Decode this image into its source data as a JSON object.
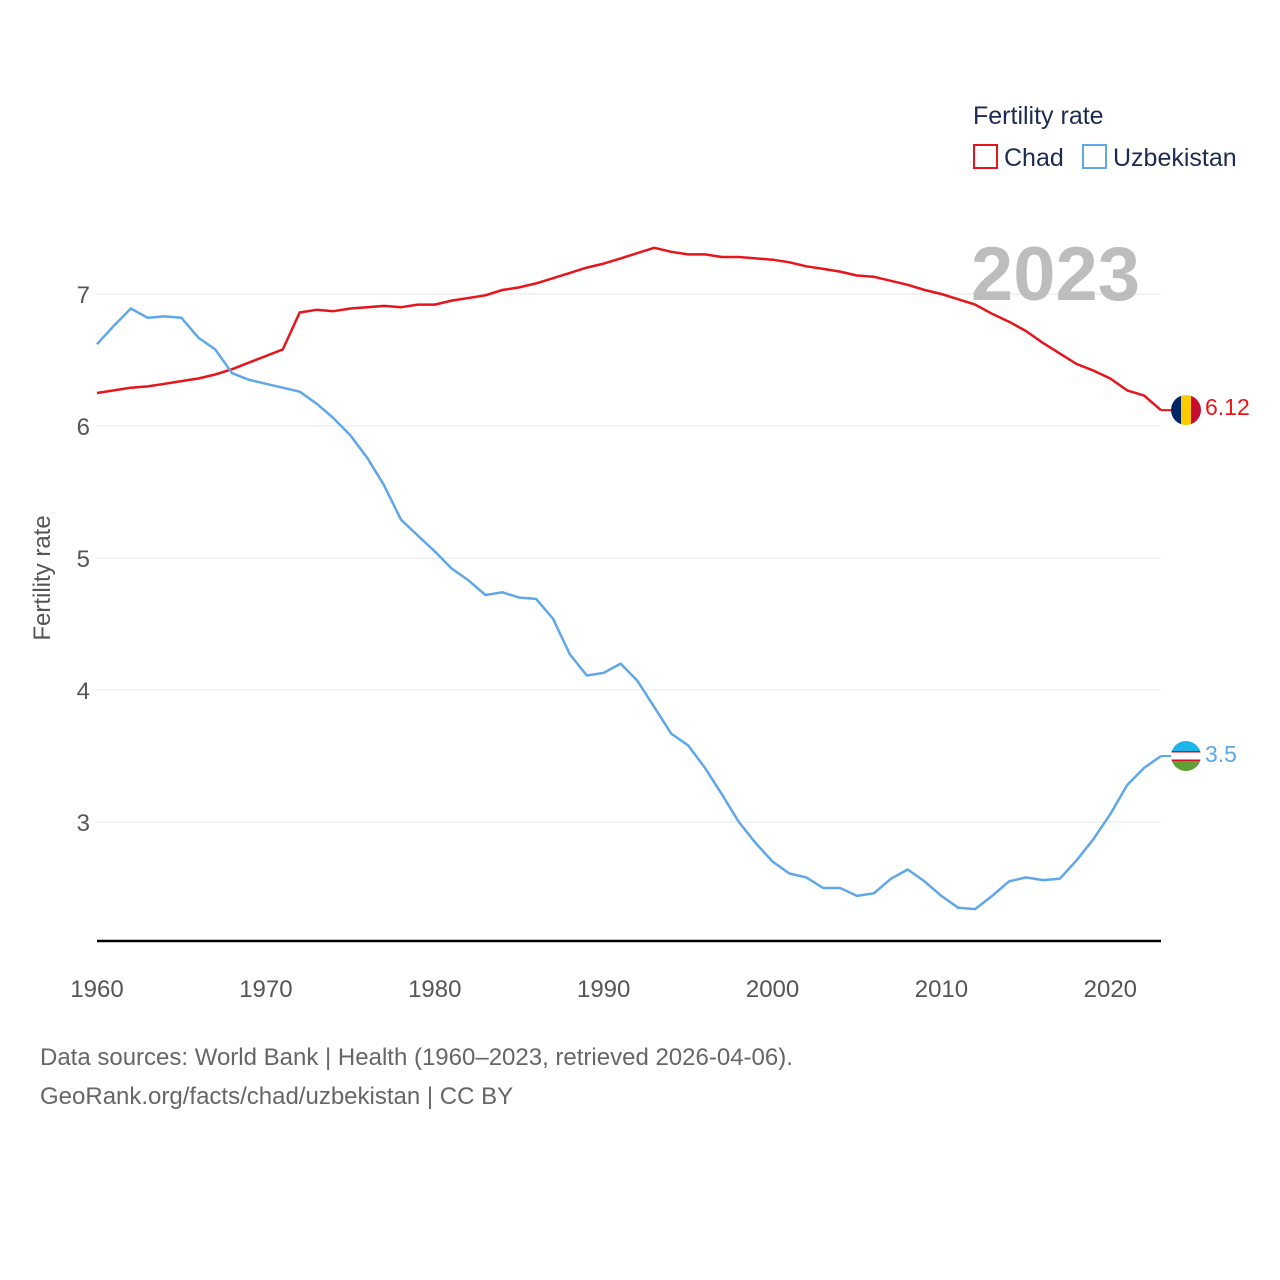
{
  "chart_data": {
    "type": "line",
    "legend": {
      "title": "Fertility rate",
      "position": "top-right"
    },
    "ylabel": "Fertility rate",
    "ylim": [
      2.1,
      7.75
    ],
    "xlim": [
      1960,
      2023
    ],
    "yticks": [
      3,
      4,
      5,
      6,
      7
    ],
    "xticks": [
      1960,
      1970,
      1980,
      1990,
      2000,
      2010,
      2020
    ],
    "year_label": "2023",
    "x": [
      1960,
      1961,
      1962,
      1963,
      1964,
      1965,
      1966,
      1967,
      1968,
      1969,
      1970,
      1971,
      1972,
      1973,
      1974,
      1975,
      1976,
      1977,
      1978,
      1979,
      1980,
      1981,
      1982,
      1983,
      1984,
      1985,
      1986,
      1987,
      1988,
      1989,
      1990,
      1991,
      1992,
      1993,
      1994,
      1995,
      1996,
      1997,
      1998,
      1999,
      2000,
      2001,
      2002,
      2003,
      2004,
      2005,
      2006,
      2007,
      2008,
      2009,
      2010,
      2011,
      2012,
      2013,
      2014,
      2015,
      2016,
      2017,
      2018,
      2019,
      2020,
      2021,
      2022,
      2023
    ],
    "series": [
      {
        "name": "Chad",
        "color": "#e8141c",
        "end_label": "6.12",
        "flag": "chad-flag",
        "values": [
          6.25,
          6.27,
          6.29,
          6.3,
          6.32,
          6.34,
          6.36,
          6.39,
          6.43,
          6.48,
          6.53,
          6.58,
          6.86,
          6.88,
          6.87,
          6.89,
          6.9,
          6.91,
          6.9,
          6.92,
          6.92,
          6.95,
          6.97,
          6.99,
          7.03,
          7.05,
          7.08,
          7.12,
          7.16,
          7.2,
          7.23,
          7.27,
          7.31,
          7.35,
          7.32,
          7.3,
          7.3,
          7.28,
          7.28,
          7.27,
          7.26,
          7.24,
          7.21,
          7.19,
          7.17,
          7.14,
          7.13,
          7.1,
          7.07,
          7.03,
          7.0,
          6.96,
          6.92,
          6.85,
          6.79,
          6.72,
          6.63,
          6.55,
          6.47,
          6.42,
          6.36,
          6.27,
          6.23,
          6.12
        ]
      },
      {
        "name": "Uzbekistan",
        "color": "#5fa7e8",
        "end_label": "3.5",
        "flag": "uzbekistan-flag",
        "values": [
          6.62,
          6.76,
          6.89,
          6.82,
          6.83,
          6.82,
          6.67,
          6.58,
          6.4,
          6.35,
          6.32,
          6.29,
          6.26,
          6.17,
          6.06,
          5.93,
          5.76,
          5.55,
          5.29,
          5.17,
          5.05,
          4.92,
          4.83,
          4.72,
          4.74,
          4.7,
          4.69,
          4.54,
          4.27,
          4.11,
          4.13,
          4.2,
          4.07,
          3.87,
          3.67,
          3.58,
          3.41,
          3.21,
          3.0,
          2.84,
          2.7,
          2.61,
          2.58,
          2.5,
          2.5,
          2.44,
          2.46,
          2.57,
          2.64,
          2.55,
          2.44,
          2.35,
          2.34,
          2.44,
          2.55,
          2.58,
          2.56,
          2.57,
          2.71,
          2.87,
          3.06,
          3.28,
          3.41,
          3.5
        ]
      }
    ]
  },
  "footer": {
    "line1": "Data sources: World Bank | Health (1960–2023, retrieved 2026-04-06).",
    "line2": "GeoRank.org/facts/chad/uzbekistan | CC BY"
  }
}
